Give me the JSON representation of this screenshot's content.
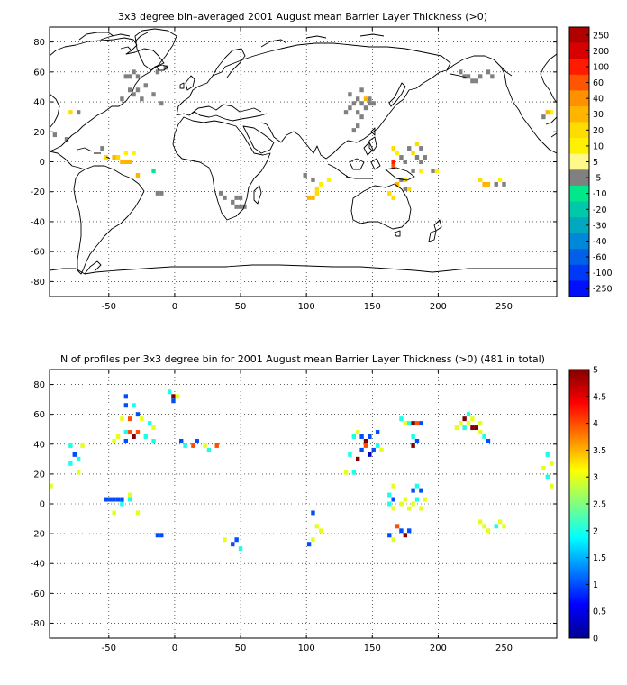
{
  "chart_data": [
    {
      "type": "heatmap",
      "title": "3x3 degree bin–averaged 2001 August mean Barrier Layer Thickness (>0)",
      "xlabel": "",
      "ylabel": "",
      "xlim": [
        -95,
        290
      ],
      "ylim": [
        -90,
        90
      ],
      "xticks": [
        -50,
        0,
        50,
        100,
        150,
        200,
        250
      ],
      "yticks": [
        -80,
        -60,
        -40,
        -20,
        0,
        20,
        40,
        60,
        80
      ],
      "grid": true,
      "colorbar": {
        "type": "discrete",
        "labels": [
          "250",
          "200",
          "100",
          "60",
          "40",
          "30",
          "20",
          "10",
          "5",
          "-5",
          "-10",
          "-20",
          "-30",
          "-40",
          "-60",
          "-100",
          "-250"
        ],
        "colors": [
          "#b00000",
          "#d80000",
          "#ff1a00",
          "#ff5500",
          "#ff9000",
          "#ffb400",
          "#ffdc00",
          "#fff200",
          "#fff98c",
          "#808080",
          "#00e88a",
          "#00c8a8",
          "#00a8c0",
          "#0088d8",
          "#0060e8",
          "#0038f8",
          "#0010ff"
        ]
      },
      "cells": [
        [
          -37,
          57,
          "#808080"
        ],
        [
          -34,
          57,
          "#808080"
        ],
        [
          -31,
          60,
          "#808080"
        ],
        [
          -28,
          57,
          "#808080"
        ],
        [
          -22,
          51,
          "#808080"
        ],
        [
          -34,
          48,
          "#808080"
        ],
        [
          -31,
          45,
          "#808080"
        ],
        [
          -28,
          48,
          "#808080"
        ],
        [
          -25,
          42,
          "#808080"
        ],
        [
          -16,
          45,
          "#808080"
        ],
        [
          -10,
          39,
          "#808080"
        ],
        [
          -40,
          42,
          "#808080"
        ],
        [
          -13,
          60,
          "#808080"
        ],
        [
          -7,
          63,
          "#808080"
        ],
        [
          -79,
          33,
          "#ffdc00"
        ],
        [
          -73,
          33,
          "#808080"
        ],
        [
          -91,
          18,
          "#808080"
        ],
        [
          -82,
          15,
          "#808080"
        ],
        [
          -55,
          9,
          "#808080"
        ],
        [
          -52,
          3,
          "#ffdc00"
        ],
        [
          -46,
          3,
          "#ffb400"
        ],
        [
          -40,
          0,
          "#ffb400"
        ],
        [
          -37,
          0,
          "#ffb400"
        ],
        [
          -34,
          0,
          "#ffb400"
        ],
        [
          -43,
          3,
          "#ffdc00"
        ],
        [
          -37,
          6,
          "#fff200"
        ],
        [
          -31,
          6,
          "#fff200"
        ],
        [
          -28,
          -9,
          "#ffb400"
        ],
        [
          -16,
          -6,
          "#00e88a"
        ],
        [
          -13,
          -21,
          "#808080"
        ],
        [
          -10,
          -21,
          "#808080"
        ],
        [
          35,
          -21,
          "#808080"
        ],
        [
          38,
          -24,
          "#808080"
        ],
        [
          44,
          -27,
          "#808080"
        ],
        [
          47,
          -24,
          "#808080"
        ],
        [
          50,
          -24,
          "#808080"
        ],
        [
          50,
          -30,
          "#808080"
        ],
        [
          47,
          -30,
          "#808080"
        ],
        [
          53,
          -30,
          "#808080"
        ],
        [
          99,
          -9,
          "#808080"
        ],
        [
          105,
          -12,
          "#808080"
        ],
        [
          108,
          -18,
          "#ffdc00"
        ],
        [
          111,
          -15,
          "#fff200"
        ],
        [
          117,
          -12,
          "#fff200"
        ],
        [
          102,
          -24,
          "#ffb400"
        ],
        [
          105,
          -24,
          "#ffb400"
        ],
        [
          108,
          -21,
          "#ffdc00"
        ],
        [
          133,
          45,
          "#808080"
        ],
        [
          139,
          42,
          "#808080"
        ],
        [
          142,
          39,
          "#808080"
        ],
        [
          145,
          36,
          "#808080"
        ],
        [
          139,
          33,
          "#808080"
        ],
        [
          142,
          30,
          "#808080"
        ],
        [
          133,
          36,
          "#808080"
        ],
        [
          130,
          33,
          "#808080"
        ],
        [
          136,
          39,
          "#808080"
        ],
        [
          148,
          42,
          "#808080"
        ],
        [
          142,
          48,
          "#808080"
        ],
        [
          145,
          42,
          "#ffb400"
        ],
        [
          148,
          39,
          "#808080"
        ],
        [
          151,
          39,
          "#808080"
        ],
        [
          136,
          21,
          "#808080"
        ],
        [
          139,
          24,
          "#808080"
        ],
        [
          166,
          9,
          "#ffdc00"
        ],
        [
          169,
          6,
          "#fff200"
        ],
        [
          166,
          0,
          "#ff1a00"
        ],
        [
          166,
          -3,
          "#ff5500"
        ],
        [
          172,
          3,
          "#808080"
        ],
        [
          178,
          9,
          "#808080"
        ],
        [
          181,
          6,
          "#ffdc00"
        ],
        [
          184,
          3,
          "#808080"
        ],
        [
          184,
          12,
          "#ffdc00"
        ],
        [
          187,
          9,
          "#808080"
        ],
        [
          181,
          -6,
          "#808080"
        ],
        [
          175,
          0,
          "#808080"
        ],
        [
          187,
          0,
          "#808080"
        ],
        [
          190,
          3,
          "#808080"
        ],
        [
          169,
          -15,
          "#ffb400"
        ],
        [
          172,
          -12,
          "#808080"
        ],
        [
          175,
          -18,
          "#808080"
        ],
        [
          178,
          -18,
          "#ffdc00"
        ],
        [
          187,
          -6,
          "#fff200"
        ],
        [
          196,
          -6,
          "#808080"
        ],
        [
          199,
          -6,
          "#fff200"
        ],
        [
          163,
          -21,
          "#ffdc00"
        ],
        [
          166,
          -24,
          "#ffdc00"
        ],
        [
          175,
          -12,
          "#ffdc00"
        ],
        [
          220,
          57,
          "#808080"
        ],
        [
          223,
          57,
          "#808080"
        ],
        [
          226,
          54,
          "#808080"
        ],
        [
          229,
          54,
          "#808080"
        ],
        [
          232,
          57,
          "#808080"
        ],
        [
          238,
          60,
          "#808080"
        ],
        [
          241,
          57,
          "#808080"
        ],
        [
          217,
          60,
          "#808080"
        ],
        [
          232,
          -12,
          "#ffdc00"
        ],
        [
          235,
          -15,
          "#ffb400"
        ],
        [
          238,
          -15,
          "#ffb400"
        ],
        [
          244,
          -15,
          "#808080"
        ],
        [
          247,
          -12,
          "#fff200"
        ],
        [
          250,
          -15,
          "#808080"
        ],
        [
          283,
          33,
          "#ffb400"
        ],
        [
          286,
          33,
          "#fff200"
        ],
        [
          280,
          30,
          "#808080"
        ]
      ]
    },
    {
      "type": "heatmap",
      "title": "N of profiles per 3x3 degree bin for 2001 August mean Barrier Layer Thickness (>0) (481 in total)",
      "xlabel": "",
      "ylabel": "",
      "xlim": [
        -95,
        290
      ],
      "ylim": [
        -90,
        90
      ],
      "xticks": [
        -50,
        0,
        50,
        100,
        150,
        200,
        250
      ],
      "yticks": [
        -80,
        -60,
        -40,
        -20,
        0,
        20,
        40,
        60,
        80
      ],
      "grid": true,
      "colorbar": {
        "type": "continuous",
        "min": 0,
        "max": 5,
        "ticks": [
          "5",
          "4.5",
          "4",
          "3.5",
          "3",
          "2.5",
          "2",
          "1.5",
          "1",
          "0.5",
          "0"
        ]
      },
      "cells": [
        [
          -37,
          72,
          1
        ],
        [
          -4,
          75,
          2
        ],
        [
          -1,
          72,
          5
        ],
        [
          2,
          72,
          3
        ],
        [
          -1,
          69,
          1
        ],
        [
          -37,
          66,
          1
        ],
        [
          -31,
          66,
          2
        ],
        [
          -28,
          60,
          1
        ],
        [
          -34,
          57,
          4
        ],
        [
          -40,
          57,
          3
        ],
        [
          -25,
          57,
          3
        ],
        [
          -19,
          54,
          2
        ],
        [
          -37,
          48,
          2
        ],
        [
          -34,
          48,
          4
        ],
        [
          -31,
          45,
          5
        ],
        [
          -28,
          48,
          4
        ],
        [
          -22,
          45,
          2
        ],
        [
          -16,
          51,
          3
        ],
        [
          -37,
          42,
          1
        ],
        [
          -43,
          45,
          3
        ],
        [
          -46,
          42,
          3
        ],
        [
          -16,
          42,
          2
        ],
        [
          -79,
          39,
          2
        ],
        [
          -70,
          39,
          3
        ],
        [
          -76,
          33,
          1
        ],
        [
          -73,
          30,
          2
        ],
        [
          -79,
          27,
          2
        ],
        [
          -73,
          21,
          3
        ],
        [
          -94,
          12,
          3
        ],
        [
          -52,
          3,
          1
        ],
        [
          -49,
          3,
          1
        ],
        [
          -46,
          3,
          1
        ],
        [
          -43,
          3,
          1
        ],
        [
          -40,
          3,
          1
        ],
        [
          -34,
          3,
          2
        ],
        [
          -34,
          6,
          3
        ],
        [
          -40,
          0,
          2
        ],
        [
          -46,
          -6,
          3
        ],
        [
          -28,
          -6,
          3
        ],
        [
          -13,
          -21,
          1
        ],
        [
          -10,
          -21,
          1
        ],
        [
          5,
          42,
          1
        ],
        [
          8,
          39,
          2
        ],
        [
          14,
          39,
          4
        ],
        [
          17,
          42,
          1
        ],
        [
          23,
          39,
          3
        ],
        [
          26,
          36,
          2
        ],
        [
          32,
          39,
          4
        ],
        [
          38,
          -24,
          3
        ],
        [
          44,
          -27,
          1
        ],
        [
          47,
          -24,
          1
        ],
        [
          50,
          -30,
          2
        ],
        [
          105,
          -6,
          1
        ],
        [
          108,
          -15,
          3
        ],
        [
          105,
          -24,
          3
        ],
        [
          102,
          -27,
          1
        ],
        [
          111,
          -18,
          3
        ],
        [
          136,
          45,
          2
        ],
        [
          139,
          48,
          3
        ],
        [
          142,
          45,
          1
        ],
        [
          145,
          39,
          4
        ],
        [
          145,
          42,
          5
        ],
        [
          142,
          36,
          1
        ],
        [
          148,
          33,
          0.3
        ],
        [
          151,
          36,
          1
        ],
        [
          154,
          39,
          2
        ],
        [
          157,
          36,
          3
        ],
        [
          154,
          48,
          1
        ],
        [
          148,
          45,
          1
        ],
        [
          139,
          30,
          5
        ],
        [
          133,
          33,
          2
        ],
        [
          130,
          21,
          3
        ],
        [
          136,
          21,
          2
        ],
        [
          181,
          39,
          5
        ],
        [
          184,
          42,
          1
        ],
        [
          181,
          45,
          2
        ],
        [
          178,
          54,
          2
        ],
        [
          181,
          54,
          5
        ],
        [
          184,
          54,
          4
        ],
        [
          187,
          54,
          1
        ],
        [
          172,
          57,
          2
        ],
        [
          175,
          54,
          3
        ],
        [
          166,
          12,
          3
        ],
        [
          163,
          6,
          2
        ],
        [
          166,
          3,
          1
        ],
        [
          163,
          0,
          2
        ],
        [
          166,
          -3,
          3
        ],
        [
          172,
          0,
          3
        ],
        [
          175,
          3,
          3
        ],
        [
          178,
          -3,
          3
        ],
        [
          181,
          0,
          3
        ],
        [
          184,
          3,
          2
        ],
        [
          187,
          -3,
          3
        ],
        [
          184,
          12,
          2
        ],
        [
          187,
          9,
          1
        ],
        [
          190,
          3,
          3
        ],
        [
          181,
          9,
          1
        ],
        [
          169,
          -15,
          4
        ],
        [
          172,
          -18,
          1
        ],
        [
          175,
          -21,
          5
        ],
        [
          166,
          -24,
          3
        ],
        [
          163,
          -21,
          1
        ],
        [
          178,
          -18,
          1
        ],
        [
          220,
          57,
          5
        ],
        [
          223,
          54,
          3
        ],
        [
          226,
          51,
          5
        ],
        [
          229,
          51,
          5
        ],
        [
          232,
          48,
          3
        ],
        [
          235,
          45,
          2
        ],
        [
          232,
          54,
          3
        ],
        [
          217,
          54,
          3
        ],
        [
          214,
          51,
          3
        ],
        [
          220,
          51,
          2
        ],
        [
          226,
          57,
          3
        ],
        [
          223,
          60,
          2
        ],
        [
          238,
          42,
          1
        ],
        [
          232,
          -12,
          3
        ],
        [
          235,
          -15,
          3
        ],
        [
          238,
          -18,
          3
        ],
        [
          244,
          -15,
          2
        ],
        [
          247,
          -12,
          3
        ],
        [
          250,
          -15,
          3
        ],
        [
          283,
          33,
          2
        ],
        [
          286,
          27,
          3
        ],
        [
          280,
          24,
          3
        ],
        [
          283,
          18,
          2
        ],
        [
          286,
          12,
          3
        ]
      ]
    }
  ]
}
